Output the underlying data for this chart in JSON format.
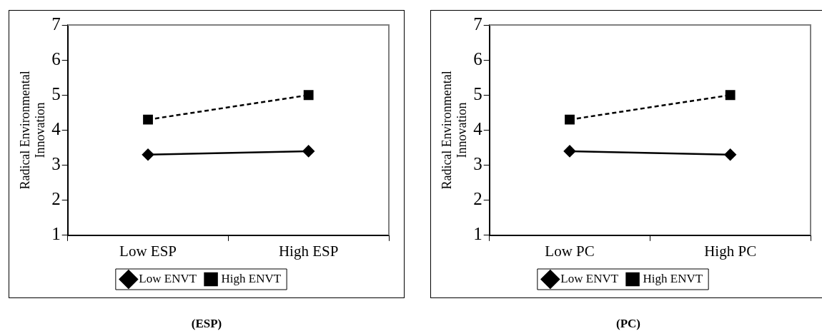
{
  "chart_data": [
    {
      "type": "line",
      "title": "(ESP)",
      "ylabel": "Radical Environmental Innovation",
      "categories": [
        "Low ESP",
        "High ESP"
      ],
      "ylim": [
        1,
        7
      ],
      "yticks": [
        1,
        2,
        3,
        4,
        5,
        6,
        7
      ],
      "legend": "bottom",
      "grid": false,
      "series": [
        {
          "name": "Low ENVT",
          "color": "#000000",
          "values": [
            3.3,
            3.4
          ],
          "marker": "diamond",
          "line_style": "solid"
        },
        {
          "name": "High ENVT",
          "color": "#000000",
          "values": [
            4.3,
            5.0
          ],
          "marker": "square",
          "line_style": "dashed"
        }
      ]
    },
    {
      "type": "line",
      "title": "(PC)",
      "ylabel": "Radical Environmental Innovation",
      "categories": [
        "Low PC",
        "High PC"
      ],
      "ylim": [
        1,
        7
      ],
      "yticks": [
        1,
        2,
        3,
        4,
        5,
        6,
        7
      ],
      "legend": "bottom",
      "grid": false,
      "series": [
        {
          "name": "Low ENVT",
          "color": "#000000",
          "values": [
            3.4,
            3.3
          ],
          "marker": "diamond",
          "line_style": "solid"
        },
        {
          "name": "High ENVT",
          "color": "#000000",
          "values": [
            4.3,
            5.0
          ],
          "marker": "square",
          "line_style": "dashed"
        }
      ]
    }
  ]
}
